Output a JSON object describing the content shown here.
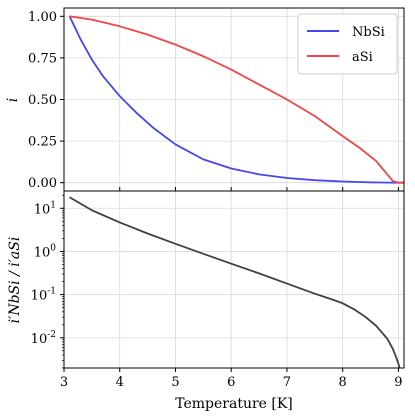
{
  "chart_data": [
    {
      "type": "line",
      "xlim": [
        3.0,
        9.1
      ],
      "ylim": [
        -0.05,
        1.05
      ],
      "yscale": "linear",
      "grid": true,
      "xlabel": "",
      "ylabel": "i",
      "yticks": [
        0.0,
        0.25,
        0.5,
        0.75,
        1.0
      ],
      "ytick_labels": [
        "0.00",
        "0.25",
        "0.50",
        "0.75",
        "1.00"
      ],
      "legend_position": "top-right",
      "series": [
        {
          "name": "NbSi",
          "color": "#4646ee",
          "x": [
            3.1,
            3.3,
            3.5,
            3.7,
            4.0,
            4.3,
            4.6,
            5.0,
            5.5,
            6.0,
            6.5,
            7.0,
            7.5,
            8.0,
            8.5,
            8.8,
            9.0,
            9.1
          ],
          "y": [
            1.0,
            0.86,
            0.74,
            0.64,
            0.52,
            0.42,
            0.33,
            0.23,
            0.14,
            0.085,
            0.05,
            0.028,
            0.015,
            0.007,
            0.002,
            0.0005,
            0.0,
            0.0
          ]
        },
        {
          "name": "aSi",
          "color": "#f04646",
          "x": [
            3.1,
            3.5,
            4.0,
            4.5,
            5.0,
            5.5,
            6.0,
            6.5,
            7.0,
            7.5,
            8.0,
            8.3,
            8.6,
            8.8,
            8.9,
            9.0,
            9.1
          ],
          "y": [
            1.0,
            0.98,
            0.94,
            0.89,
            0.83,
            0.76,
            0.68,
            0.59,
            0.5,
            0.4,
            0.28,
            0.21,
            0.13,
            0.05,
            0.01,
            0.0,
            0.0
          ]
        }
      ]
    },
    {
      "type": "line",
      "xlim": [
        3.0,
        9.1
      ],
      "ylim_log10": [
        -2.7,
        1.4
      ],
      "yscale": "log",
      "grid": true,
      "xlabel": "Temperature [K]",
      "ylabel": "i′NbSi / i′aSi",
      "xticks": [
        3,
        4,
        5,
        6,
        7,
        8,
        9
      ],
      "xtick_labels": [
        "3",
        "4",
        "5",
        "6",
        "7",
        "8",
        "9"
      ],
      "yticks_log10": [
        -2,
        -1,
        0,
        1
      ],
      "ytick_labels": [
        [
          "10",
          "-2"
        ],
        [
          "10",
          "-1"
        ],
        [
          "10",
          "0"
        ],
        [
          "10",
          "1"
        ]
      ],
      "series": [
        {
          "name": "",
          "color": "#404040",
          "x": [
            3.1,
            3.5,
            4.0,
            4.5,
            5.0,
            5.5,
            6.0,
            6.5,
            7.0,
            7.5,
            7.8,
            8.0,
            8.2,
            8.4,
            8.6,
            8.8,
            8.9,
            8.95,
            9.0,
            9.02
          ],
          "y": [
            18.0,
            9.0,
            4.7,
            2.6,
            1.5,
            0.88,
            0.52,
            0.31,
            0.18,
            0.105,
            0.078,
            0.063,
            0.046,
            0.031,
            0.019,
            0.0095,
            0.0055,
            0.0038,
            0.0025,
            0.002
          ]
        }
      ]
    }
  ]
}
